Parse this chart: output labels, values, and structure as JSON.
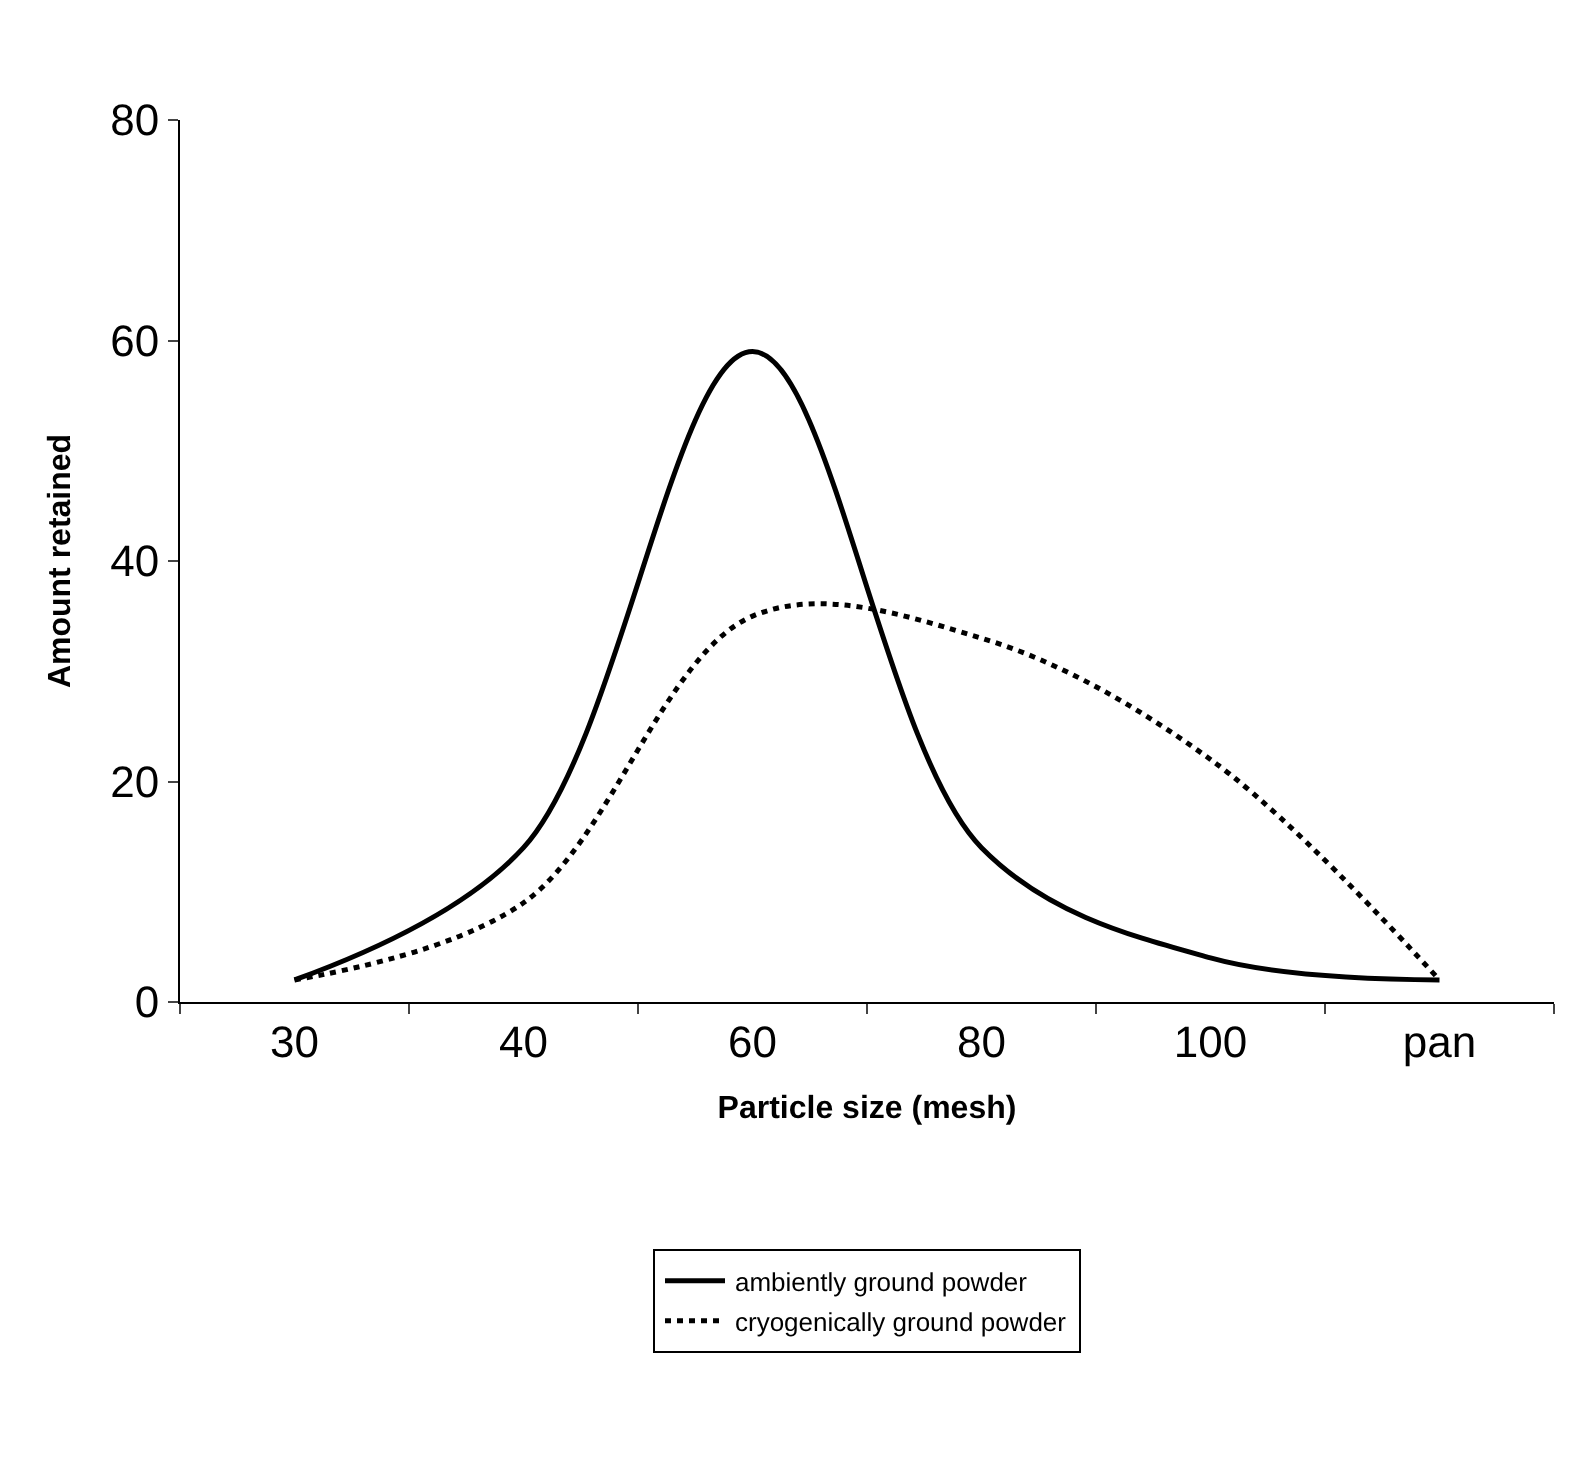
{
  "chart_data": {
    "type": "line",
    "xlabel": "Particle size (mesh)",
    "ylabel": "Amount retained",
    "categories": [
      "30",
      "40",
      "60",
      "80",
      "100",
      "pan"
    ],
    "series": [
      {
        "name": "ambiently ground powder",
        "color": "#000000",
        "line_style": "solid",
        "values": [
          2,
          14,
          59,
          14,
          4,
          2
        ]
      },
      {
        "name": "cryogenically ground powder",
        "color": "#000000",
        "line_style": "dotted",
        "values": [
          2,
          9,
          35,
          33,
          22,
          2
        ]
      }
    ],
    "ylim": [
      0,
      80
    ],
    "yticks": [
      0,
      20,
      40,
      60,
      80
    ],
    "legend": "bottom",
    "marker": "none"
  }
}
